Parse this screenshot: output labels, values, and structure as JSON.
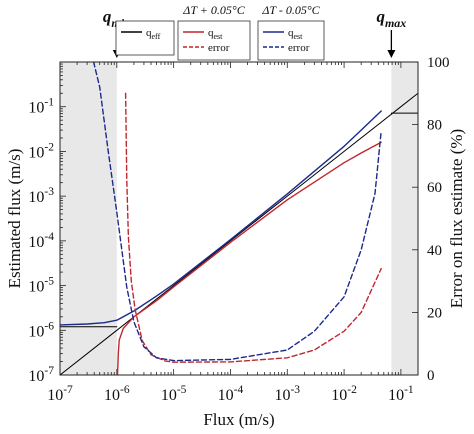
{
  "chart_data": {
    "type": "line",
    "xscale": "log",
    "yscale": "log",
    "xlim": [
      1e-07,
      0.2
    ],
    "ylim_left": [
      1e-07,
      1
    ],
    "ylim_right": [
      0,
      100
    ],
    "xlabel": "Flux (m/s)",
    "ylabel_left": "Estimated flux (m/s)",
    "ylabel_right": "Error on flux estimate (%)",
    "x_ticks": [
      {
        "base": "10",
        "exp": "-7",
        "value": 1e-07
      },
      {
        "base": "10",
        "exp": "-6",
        "value": 1e-06
      },
      {
        "base": "10",
        "exp": "-5",
        "value": 1e-05
      },
      {
        "base": "10",
        "exp": "-4",
        "value": 0.0001
      },
      {
        "base": "10",
        "exp": "-3",
        "value": 0.001
      },
      {
        "base": "10",
        "exp": "-2",
        "value": 0.01
      },
      {
        "base": "10",
        "exp": "-1",
        "value": 0.1
      }
    ],
    "y_left_ticks": [
      {
        "base": "10",
        "exp": "-7",
        "value": 1e-07
      },
      {
        "base": "10",
        "exp": "-6",
        "value": 1e-06
      },
      {
        "base": "10",
        "exp": "-5",
        "value": 1e-05
      },
      {
        "base": "10",
        "exp": "-4",
        "value": 0.0001
      },
      {
        "base": "10",
        "exp": "-3",
        "value": 0.001
      },
      {
        "base": "10",
        "exp": "-2",
        "value": 0.01
      },
      {
        "base": "10",
        "exp": "-1",
        "value": 0.1
      }
    ],
    "y_right_ticks": [
      {
        "label": "0",
        "value": 0
      },
      {
        "label": "20",
        "value": 20
      },
      {
        "label": "40",
        "value": 40
      },
      {
        "label": "60",
        "value": 60
      },
      {
        "label": "80",
        "value": 80
      },
      {
        "label": "100",
        "value": 100
      }
    ],
    "shaded_regions_x": [
      [
        1e-07,
        1e-06
      ],
      [
        0.068,
        0.2
      ]
    ],
    "annotations": {
      "q_min": {
        "symbol": "q",
        "subscript": "min",
        "x": 1e-06
      },
      "q_max": {
        "symbol": "q",
        "subscript": "max",
        "x": 0.068
      }
    },
    "legends": [
      {
        "title": "",
        "items": [
          {
            "base": "q",
            "sub": "eff",
            "style": "solid",
            "color": "#000000"
          }
        ]
      },
      {
        "title": "ΔT + 0.05°C",
        "items": [
          {
            "base": "q",
            "sub": "est",
            "style": "solid",
            "color": "#c0272d"
          },
          {
            "base": "error",
            "sub": "",
            "style": "dashed",
            "color": "#c0272d"
          }
        ]
      },
      {
        "title": "ΔT - 0.05°C",
        "items": [
          {
            "base": "q",
            "sub": "est",
            "style": "solid",
            "color": "#1c2a8c"
          },
          {
            "base": "error",
            "sub": "",
            "style": "dashed",
            "color": "#1c2a8c"
          }
        ]
      }
    ],
    "series": [
      {
        "name": "q_eff",
        "axis": "left",
        "style": "solid",
        "color": "#000000",
        "width": 1,
        "points": [
          [
            1e-07,
            1e-07
          ],
          [
            1e-06,
            1e-06
          ],
          [
            1e-05,
            1e-05
          ],
          [
            0.0001,
            0.0001
          ],
          [
            0.001,
            0.001
          ],
          [
            0.01,
            0.01
          ],
          [
            0.1,
            0.1
          ],
          [
            0.2,
            0.2
          ]
        ]
      },
      {
        "name": "q_eff floor",
        "axis": "left",
        "style": "solid",
        "color": "#000000",
        "width": 1,
        "points": [
          [
            1e-07,
            1.2e-06
          ],
          [
            1e-06,
            1.2e-06
          ]
        ]
      },
      {
        "name": "q_eff ceiling",
        "axis": "left",
        "style": "solid",
        "color": "#000000",
        "width": 1,
        "points": [
          [
            0.068,
            0.072
          ],
          [
            0.2,
            0.072
          ]
        ]
      },
      {
        "name": "q_est (ΔT + 0.05°C)",
        "axis": "left",
        "style": "solid",
        "color": "#c0272d",
        "width": 1.4,
        "points": [
          [
            1.03e-06,
            1e-07
          ],
          [
            1.06e-06,
            3e-07
          ],
          [
            1.1e-06,
            6e-07
          ],
          [
            1.3e-06,
            1.1e-06
          ],
          [
            2e-06,
            2e-06
          ],
          [
            5e-06,
            4.6e-06
          ],
          [
            1e-05,
            9.3e-06
          ],
          [
            0.0001,
            9.2e-05
          ],
          [
            0.001,
            0.00083
          ],
          [
            0.01,
            0.0056
          ],
          [
            0.02,
            0.0092
          ],
          [
            0.045,
            0.016
          ]
        ]
      },
      {
        "name": "q_est (ΔT - 0.05°C)",
        "axis": "left",
        "style": "solid",
        "color": "#1c2a8c",
        "width": 1.4,
        "points": [
          [
            1e-07,
            1.32e-06
          ],
          [
            3e-07,
            1.38e-06
          ],
          [
            6e-07,
            1.48e-06
          ],
          [
            1e-06,
            1.68e-06
          ],
          [
            2e-06,
            2.7e-06
          ],
          [
            5e-06,
            5.8e-06
          ],
          [
            1e-05,
            1.08e-05
          ],
          [
            0.0001,
            0.000106
          ],
          [
            0.001,
            0.00112
          ],
          [
            0.01,
            0.013
          ],
          [
            0.02,
            0.03
          ],
          [
            0.045,
            0.08
          ]
        ]
      },
      {
        "name": "error (ΔT + 0.05°C)",
        "axis": "right",
        "style": "dashed",
        "color": "#c0272d",
        "width": 1.4,
        "points": [
          [
            1.43e-06,
            90
          ],
          [
            1.5e-06,
            62
          ],
          [
            1.6e-06,
            44
          ],
          [
            1.8e-06,
            30
          ],
          [
            2.1e-06,
            21
          ],
          [
            2.8e-06,
            11
          ],
          [
            4e-06,
            6.5
          ],
          [
            7e-06,
            4.5
          ],
          [
            1e-05,
            4.1
          ],
          [
            0.0001,
            4.2
          ],
          [
            0.001,
            5.5
          ],
          [
            0.003,
            8
          ],
          [
            0.01,
            14
          ],
          [
            0.02,
            20
          ],
          [
            0.045,
            34
          ]
        ]
      },
      {
        "name": "error (ΔT - 0.05°C)",
        "axis": "right",
        "style": "dashed",
        "color": "#1c2a8c",
        "width": 1.4,
        "points": [
          [
            3.9e-07,
            100
          ],
          [
            5e-07,
            92
          ],
          [
            7e-07,
            72
          ],
          [
            1e-06,
            52
          ],
          [
            1.5e-06,
            28
          ],
          [
            2e-06,
            17
          ],
          [
            3e-06,
            9
          ],
          [
            5e-06,
            5.5
          ],
          [
            1e-05,
            4.6
          ],
          [
            0.0001,
            5
          ],
          [
            0.001,
            8
          ],
          [
            0.003,
            14
          ],
          [
            0.01,
            25
          ],
          [
            0.02,
            40
          ],
          [
            0.035,
            58
          ],
          [
            0.045,
            78
          ]
        ]
      }
    ]
  }
}
